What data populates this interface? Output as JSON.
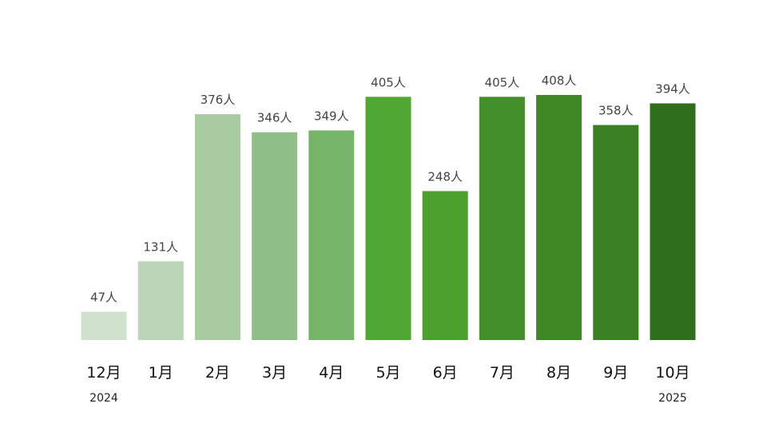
{
  "chart_data": {
    "type": "bar",
    "title": "",
    "xlabel": "",
    "ylabel": "",
    "unit": "人",
    "categories": [
      "12月",
      "1月",
      "2月",
      "3月",
      "4月",
      "5月",
      "6月",
      "7月",
      "8月",
      "9月",
      "10月"
    ],
    "values": [
      47,
      131,
      376,
      346,
      349,
      405,
      248,
      405,
      408,
      358,
      394
    ],
    "value_labels": [
      "47人",
      "131人",
      "376人",
      "346人",
      "349人",
      "405人",
      "248人",
      "405人",
      "408人",
      "358人",
      "394人"
    ],
    "year_labels": [
      {
        "category_index": 0,
        "text": "2024"
      },
      {
        "category_index": 10,
        "text": "2025"
      }
    ],
    "colors": [
      "#cfe2cc",
      "#bbd6b6",
      "#a9cba2",
      "#8fbe86",
      "#76b46a",
      "#4fa832",
      "#4ca02e",
      "#428f29",
      "#3d8725",
      "#3a7f24",
      "#2f6e1d"
    ],
    "ylim": [
      0,
      420
    ],
    "grid": false,
    "legend": "none"
  }
}
